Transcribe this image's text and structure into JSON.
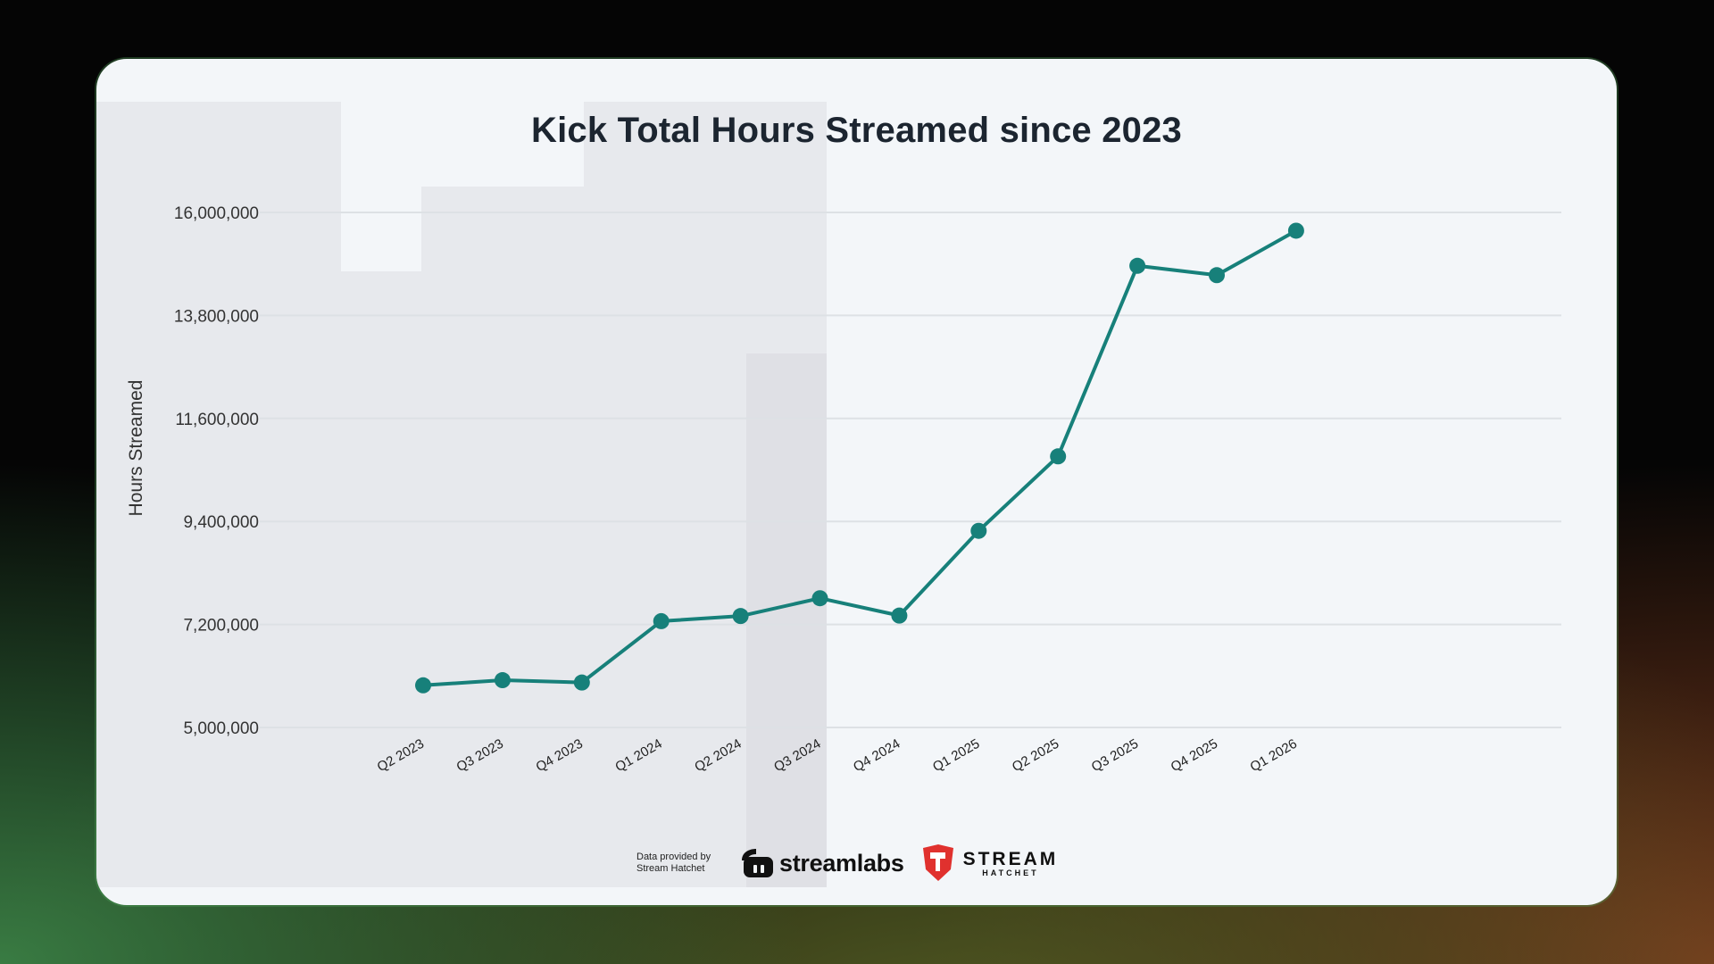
{
  "chart_data": {
    "type": "line",
    "title": "Kick Total Hours Streamed since 2023",
    "xlabel": "",
    "ylabel": "Hours Streamed",
    "categories": [
      "Q2 2023",
      "Q3 2023",
      "Q4 2023",
      "Q1 2024",
      "Q2 2024",
      "Q3 2024",
      "Q4 2024",
      "Q1 2025",
      "Q2 2025",
      "Q3 2025",
      "Q4 2025",
      "Q1 2026"
    ],
    "values": [
      5900000,
      6010000,
      5960000,
      7270000,
      7380000,
      7760000,
      7390000,
      9200000,
      10790000,
      14860000,
      14660000,
      15610000
    ],
    "yticks": [
      5000000,
      7200000,
      9400000,
      11600000,
      13800000,
      16000000
    ],
    "ytick_labels": [
      "5,000,000",
      "7,200,000",
      "9,400,000",
      "11,600,000",
      "13,800,000",
      "16,000,000"
    ],
    "ylim": [
      5000000,
      16000000
    ],
    "grid": true,
    "legend": "none",
    "line_color": "#17807a"
  },
  "footer": {
    "credit_line1": "Data provided by",
    "credit_line2": "Stream Hatchet",
    "streamlabs_logo_text": "streamlabs",
    "streamhatchet_logo_top": "STREAM",
    "streamhatchet_logo_bottom": "HATCHET"
  },
  "colors": {
    "card_background": "#f3f6f9",
    "gridline": "#dde1e5",
    "title_text": "#1c2530",
    "hatchet_red": "#e0312e"
  }
}
